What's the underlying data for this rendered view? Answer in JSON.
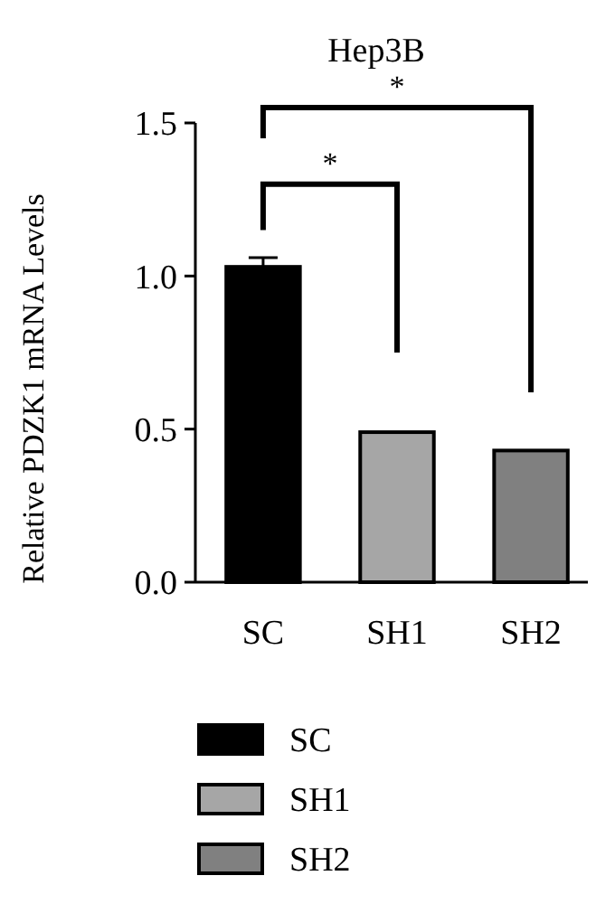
{
  "chart_data": {
    "type": "bar",
    "title": "Hep3B",
    "ylabel": "Relative PDZK1 mRNA Levels",
    "categories": [
      "SC",
      "SH1",
      "SH2"
    ],
    "series": [
      {
        "name": "SC",
        "color": "#000000",
        "values": [
          1.03,
          null,
          null
        ],
        "errors": [
          0.03,
          null,
          null
        ]
      },
      {
        "name": "SH1",
        "color": "#a6a6a6",
        "values": [
          null,
          0.49,
          null
        ]
      },
      {
        "name": "SH2",
        "color": "#808080",
        "values": [
          null,
          null,
          0.43
        ]
      }
    ],
    "ylim": [
      0,
      1.5
    ],
    "yticks": [
      {
        "value": 0,
        "label": "0.0"
      },
      {
        "value": 0.5,
        "label": "0.5"
      },
      {
        "value": 1,
        "label": "1.0"
      },
      {
        "value": 1.5,
        "label": "1.5"
      }
    ],
    "grid": false,
    "legend": "bottom left",
    "annotations": [
      "*",
      "*"
    ]
  }
}
